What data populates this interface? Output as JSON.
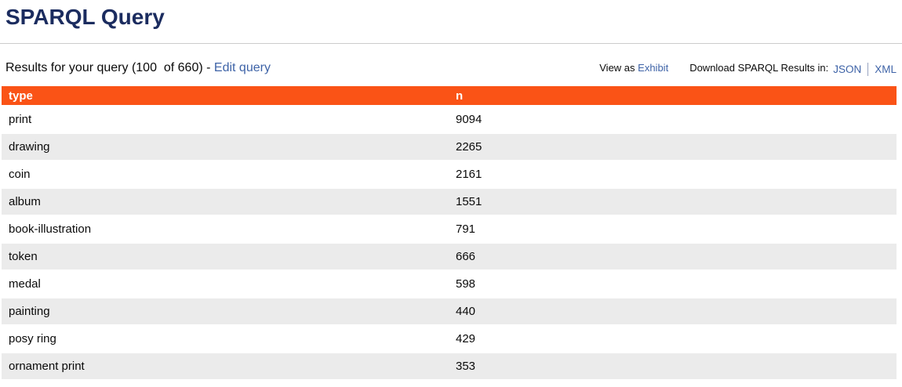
{
  "page": {
    "title": "SPARQL Query"
  },
  "results_bar": {
    "results_text": "Results for your query (100  of 660) - ",
    "edit_query_label": "Edit query",
    "view_as_label": "View as ",
    "exhibit_label": "Exhibit",
    "download_label": "Download SPARQL Results in:",
    "json_label": "JSON",
    "xml_label": "XML"
  },
  "table": {
    "columns": [
      {
        "key": "type",
        "label": "type"
      },
      {
        "key": "n",
        "label": "n"
      }
    ],
    "rows": [
      {
        "type": "print",
        "n": "9094"
      },
      {
        "type": "drawing",
        "n": "2265"
      },
      {
        "type": "coin",
        "n": "2161"
      },
      {
        "type": "album",
        "n": "1551"
      },
      {
        "type": "book-illustration",
        "n": "791"
      },
      {
        "type": "token",
        "n": "666"
      },
      {
        "type": "medal",
        "n": "598"
      },
      {
        "type": "painting",
        "n": "440"
      },
      {
        "type": "posy ring",
        "n": "429"
      },
      {
        "type": "ornament print",
        "n": "353"
      }
    ]
  },
  "colors": {
    "accent": "#fa5316",
    "link": "#3e63a7",
    "title": "#1b2c5f",
    "row_alt": "#ebebeb"
  }
}
